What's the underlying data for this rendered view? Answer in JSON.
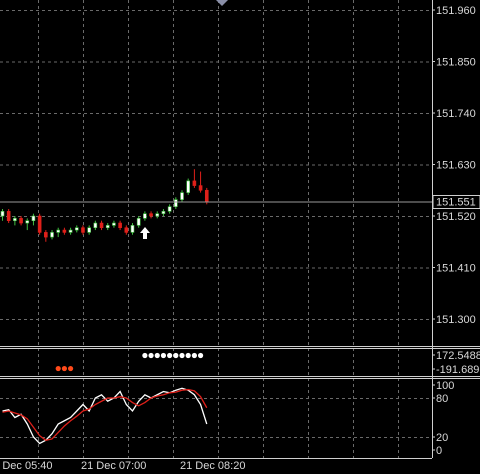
{
  "chart_data": [
    {
      "type": "candlestick",
      "categories": [
        "Dec 05:40",
        null,
        null,
        null,
        null,
        null,
        null,
        null,
        null,
        null,
        null,
        null,
        null,
        "21 Dec 07:00",
        null,
        null,
        null,
        null,
        null,
        null,
        null,
        null,
        null,
        null,
        null,
        null,
        null,
        null,
        null,
        "21 Dec 08:20",
        null,
        null,
        null,
        null
      ],
      "open": [
        151.52,
        151.53,
        151.51,
        151.515,
        151.505,
        151.51,
        151.52,
        151.485,
        151.475,
        151.485,
        151.49,
        151.485,
        151.49,
        151.495,
        151.485,
        151.495,
        151.505,
        151.495,
        151.5,
        151.505,
        151.495,
        151.485,
        151.5,
        151.515,
        151.525,
        151.52,
        151.525,
        151.53,
        151.54,
        151.555,
        151.57,
        151.595,
        151.585,
        151.575
      ],
      "high": [
        151.535,
        151.535,
        151.52,
        151.52,
        151.515,
        151.525,
        151.525,
        151.49,
        151.49,
        151.495,
        151.495,
        151.495,
        151.5,
        151.5,
        151.5,
        151.51,
        151.51,
        151.505,
        151.51,
        151.51,
        151.5,
        151.505,
        151.52,
        151.53,
        151.53,
        151.53,
        151.535,
        151.545,
        151.56,
        151.575,
        151.6,
        151.62,
        151.615,
        151.58
      ],
      "low": [
        151.51,
        151.505,
        151.5,
        151.5,
        151.49,
        151.5,
        151.48,
        151.465,
        151.47,
        151.475,
        151.48,
        151.48,
        151.485,
        151.48,
        151.48,
        151.49,
        151.49,
        151.49,
        151.495,
        151.49,
        151.48,
        151.48,
        151.495,
        151.51,
        151.515,
        151.515,
        151.52,
        151.525,
        151.535,
        151.55,
        151.565,
        151.58,
        151.57,
        151.545
      ],
      "close": [
        151.53,
        151.51,
        151.515,
        151.505,
        151.51,
        151.52,
        151.485,
        151.475,
        151.485,
        151.49,
        151.485,
        151.49,
        151.495,
        151.485,
        151.495,
        151.505,
        151.495,
        151.5,
        151.505,
        151.495,
        151.485,
        151.5,
        151.515,
        151.525,
        151.52,
        151.525,
        151.53,
        151.54,
        151.555,
        151.57,
        151.595,
        151.585,
        151.575,
        151.551
      ],
      "up_color": "#ffffff",
      "down_color": "#e0201a",
      "wick_color": "#3fbf3f",
      "current_price": 151.551,
      "ylim": [
        151.2445,
        151.9814
      ],
      "yticks": [
        {
          "value": 151.96,
          "label": "151.960"
        },
        {
          "value": 151.85,
          "label": "151.850"
        },
        {
          "value": 151.74,
          "label": "151.740"
        },
        {
          "value": 151.63,
          "label": "151.630"
        },
        {
          "value": 151.52,
          "label": "151.520"
        },
        {
          "value": 151.41,
          "label": "151.410"
        },
        {
          "value": 151.3,
          "label": "151.300"
        }
      ],
      "grid": true
    },
    {
      "type": "dots",
      "series": [
        {
          "color": "#ffffff",
          "values": [
            null,
            null,
            null,
            null,
            null,
            null,
            null,
            null,
            null,
            null,
            null,
            null,
            null,
            null,
            null,
            null,
            null,
            null,
            null,
            null,
            null,
            null,
            null,
            160,
            160,
            160,
            160,
            160,
            160,
            160,
            160,
            160,
            160,
            null
          ]
        },
        {
          "color": "#ff4a1a",
          "values": [
            null,
            null,
            null,
            null,
            null,
            null,
            null,
            null,
            null,
            -180,
            -180,
            -180,
            null,
            null,
            null,
            null,
            null,
            null,
            null,
            null,
            null,
            null,
            null,
            null,
            null,
            null,
            null,
            null,
            null,
            null,
            null,
            null,
            null,
            null
          ]
        }
      ],
      "ylim": [
        -191.689,
        172.5488
      ],
      "yticks": [
        172.5488,
        -191.689
      ]
    },
    {
      "type": "line",
      "series": [
        {
          "color": "#ffffff",
          "values": [
            60,
            62,
            50,
            55,
            40,
            20,
            10,
            15,
            25,
            40,
            45,
            50,
            60,
            70,
            60,
            80,
            85,
            75,
            80,
            90,
            70,
            60,
            75,
            85,
            80,
            85,
            90,
            88,
            92,
            95,
            92,
            85,
            70,
            40
          ]
        },
        {
          "color": "#e0201a",
          "values": [
            58,
            60,
            57,
            54,
            48,
            35,
            22,
            15,
            17,
            27,
            37,
            45,
            52,
            60,
            63,
            70,
            75,
            80,
            80,
            82,
            80,
            73,
            68,
            73,
            80,
            83,
            85,
            88,
            89,
            92,
            93,
            91,
            82,
            65
          ]
        }
      ],
      "ylim": [
        0,
        100
      ],
      "yticks": [
        100,
        80,
        20,
        0
      ],
      "grid": true
    }
  ]
}
